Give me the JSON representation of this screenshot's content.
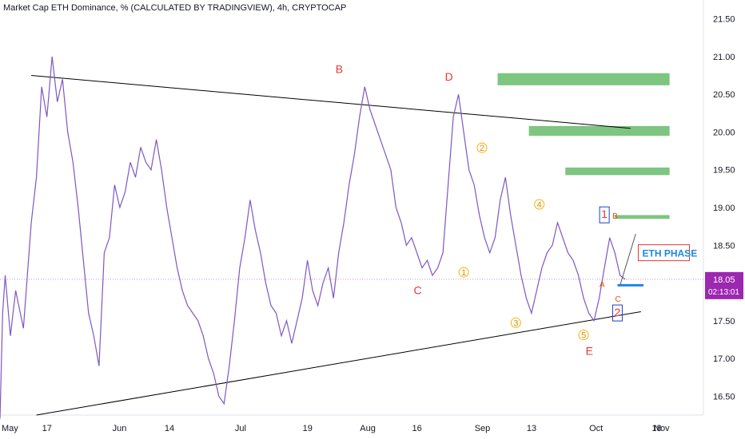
{
  "chart_data": {
    "type": "line",
    "title": "Market Cap ETH Dominance, % (CALCULATED BY TRADINGVIEW), 4h, CRYPTOCAP",
    "xlabel": "",
    "ylabel": "",
    "ylim": [
      16.25,
      21.75
    ],
    "y_ticks": [
      "21.50",
      "21.00",
      "20.50",
      "20.00",
      "19.50",
      "19.00",
      "18.50",
      "18.00",
      "17.50",
      "17.00",
      "16.50"
    ],
    "x_ticks": [
      "May",
      "17",
      "Jun",
      "14",
      "Jul",
      "19",
      "Aug",
      "16",
      "Sep",
      "13",
      "Oct",
      "18",
      "Nov"
    ],
    "grid": false,
    "current_price": {
      "value": "18.05",
      "countdown": "02:13:01",
      "color": "#9c27b0"
    },
    "series": [
      {
        "color": "#7e57c2",
        "points": [
          [
            0,
            16.2
          ],
          [
            1,
            17.6
          ],
          [
            2,
            18.1
          ],
          [
            4,
            17.3
          ],
          [
            6,
            17.9
          ],
          [
            9,
            17.4
          ],
          [
            12,
            18.8
          ],
          [
            14,
            19.4
          ],
          [
            16,
            20.6
          ],
          [
            18,
            20.2
          ],
          [
            20,
            21.0
          ],
          [
            22,
            20.4
          ],
          [
            24,
            20.7
          ],
          [
            26,
            20.0
          ],
          [
            28,
            19.6
          ],
          [
            30,
            19.0
          ],
          [
            32,
            18.3
          ],
          [
            34,
            17.6
          ],
          [
            36,
            17.3
          ],
          [
            38,
            16.9
          ],
          [
            40,
            18.4
          ],
          [
            42,
            18.6
          ],
          [
            44,
            19.3
          ],
          [
            46,
            19.0
          ],
          [
            48,
            19.2
          ],
          [
            50,
            19.6
          ],
          [
            52,
            19.4
          ],
          [
            54,
            19.8
          ],
          [
            56,
            19.6
          ],
          [
            58,
            19.5
          ],
          [
            60,
            19.9
          ],
          [
            62,
            19.5
          ],
          [
            64,
            19.0
          ],
          [
            66,
            18.6
          ],
          [
            68,
            18.2
          ],
          [
            70,
            17.9
          ],
          [
            72,
            17.7
          ],
          [
            74,
            17.6
          ],
          [
            76,
            17.5
          ],
          [
            78,
            17.3
          ],
          [
            80,
            17.0
          ],
          [
            82,
            16.8
          ],
          [
            84,
            16.5
          ],
          [
            86,
            16.4
          ],
          [
            88,
            16.9
          ],
          [
            90,
            17.5
          ],
          [
            92,
            18.2
          ],
          [
            94,
            18.6
          ],
          [
            96,
            19.1
          ],
          [
            98,
            18.7
          ],
          [
            100,
            18.4
          ],
          [
            102,
            18.0
          ],
          [
            104,
            17.7
          ],
          [
            106,
            17.6
          ],
          [
            108,
            17.3
          ],
          [
            110,
            17.5
          ],
          [
            112,
            17.2
          ],
          [
            114,
            17.5
          ],
          [
            116,
            17.8
          ],
          [
            118,
            18.3
          ],
          [
            120,
            17.9
          ],
          [
            122,
            17.7
          ],
          [
            124,
            18.0
          ],
          [
            126,
            18.2
          ],
          [
            128,
            17.8
          ],
          [
            130,
            18.4
          ],
          [
            132,
            18.8
          ],
          [
            134,
            19.3
          ],
          [
            136,
            19.7
          ],
          [
            138,
            20.2
          ],
          [
            140,
            20.6
          ],
          [
            142,
            20.3
          ],
          [
            144,
            20.1
          ],
          [
            146,
            19.9
          ],
          [
            148,
            19.7
          ],
          [
            150,
            19.5
          ],
          [
            152,
            19.0
          ],
          [
            154,
            18.8
          ],
          [
            156,
            18.5
          ],
          [
            158,
            18.6
          ],
          [
            160,
            18.4
          ],
          [
            162,
            18.2
          ],
          [
            164,
            18.3
          ],
          [
            166,
            18.1
          ],
          [
            168,
            18.2
          ],
          [
            170,
            18.4
          ],
          [
            172,
            19.3
          ],
          [
            174,
            20.2
          ],
          [
            176,
            20.5
          ],
          [
            178,
            20.0
          ],
          [
            180,
            19.5
          ],
          [
            182,
            19.3
          ],
          [
            184,
            18.9
          ],
          [
            186,
            18.6
          ],
          [
            188,
            18.4
          ],
          [
            190,
            18.6
          ],
          [
            192,
            19.1
          ],
          [
            194,
            19.4
          ],
          [
            196,
            18.9
          ],
          [
            198,
            18.5
          ],
          [
            200,
            18.1
          ],
          [
            202,
            17.8
          ],
          [
            204,
            17.6
          ],
          [
            206,
            17.9
          ],
          [
            208,
            18.2
          ],
          [
            210,
            18.4
          ],
          [
            212,
            18.5
          ],
          [
            214,
            18.8
          ],
          [
            216,
            18.6
          ],
          [
            218,
            18.4
          ],
          [
            220,
            18.3
          ],
          [
            222,
            18.1
          ],
          [
            224,
            17.8
          ],
          [
            226,
            17.6
          ],
          [
            228,
            17.5
          ],
          [
            230,
            17.8
          ],
          [
            232,
            18.2
          ],
          [
            234,
            18.6
          ],
          [
            236,
            18.4
          ],
          [
            238,
            18.1
          ],
          [
            240,
            18.05
          ]
        ]
      }
    ],
    "annotations": [
      {
        "text": "B",
        "kind": "wave",
        "x": 130,
        "y": 20.78
      },
      {
        "text": "D",
        "kind": "wave",
        "x": 172,
        "y": 20.68
      },
      {
        "text": "C",
        "kind": "wave",
        "x": 160,
        "y": 17.85
      },
      {
        "text": "E",
        "kind": "wave",
        "x": 226,
        "y": 17.05
      },
      {
        "text": "1",
        "kind": "sub",
        "x": 178,
        "y": 18.1
      },
      {
        "text": "2",
        "kind": "sub",
        "x": 185,
        "y": 19.75
      },
      {
        "text": "3",
        "kind": "sub",
        "x": 198,
        "y": 17.43
      },
      {
        "text": "4",
        "kind": "sub",
        "x": 207,
        "y": 19.0
      },
      {
        "text": "5",
        "kind": "sub",
        "x": 224,
        "y": 17.27
      },
      {
        "text": "A",
        "kind": "abc",
        "x": 231,
        "y": 17.95
      },
      {
        "text": "B",
        "kind": "abc",
        "x": 236,
        "y": 18.85
      },
      {
        "text": "C",
        "kind": "abc",
        "x": 237,
        "y": 17.75
      },
      {
        "text": "1",
        "kind": "box",
        "x": 232,
        "y": 18.85
      },
      {
        "text": "2",
        "kind": "box",
        "x": 237,
        "y": 17.55
      },
      {
        "text": "ETH PHASE",
        "kind": "label",
        "x": 245,
        "y": 18.38
      }
    ],
    "zones": [
      {
        "y_from": 20.62,
        "y_to": 20.78,
        "color": "#66bb6a"
      },
      {
        "y_from": 19.95,
        "y_to": 20.08,
        "color": "#66bb6a"
      },
      {
        "y_from": 19.43,
        "y_to": 19.53,
        "color": "#66bb6a"
      },
      {
        "y_from": 18.85,
        "y_to": 18.9,
        "color": "#66bb6a"
      }
    ],
    "trendlines": [
      {
        "x1": 12,
        "y1": 20.75,
        "x2": 242,
        "y2": 20.05,
        "color": "#000000"
      },
      {
        "x1": 14,
        "y1": 16.25,
        "x2": 246,
        "y2": 17.62,
        "color": "#000000"
      }
    ]
  }
}
